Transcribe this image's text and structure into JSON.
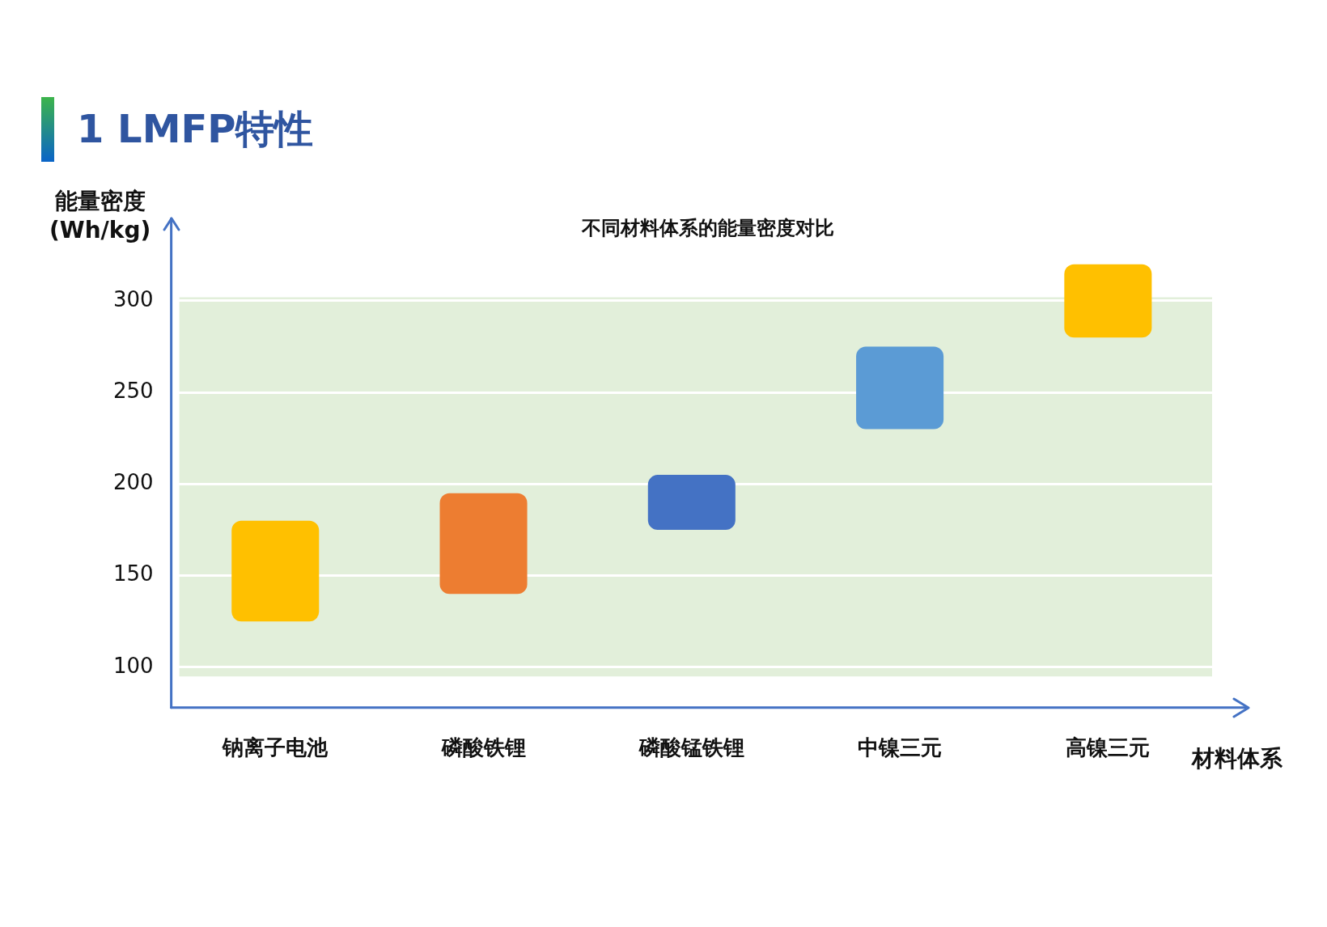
{
  "chart_data": {
    "type": "bar",
    "title": "1  LMFP特性",
    "subtitle": "不同材料体系的能量密度对比",
    "ylabel": "能量密度\n(Wh/kg)",
    "xlabel": "材料体系",
    "categories": [
      "钠离子电池",
      "磷酸铁锂",
      "磷酸锰铁锂",
      "中镍三元",
      "高镍三元"
    ],
    "base": [
      125,
      140,
      175,
      230,
      280
    ],
    "values": [
      55,
      55,
      30,
      45,
      40
    ],
    "colors": [
      "#ffc000",
      "#ed7d31",
      "#4472c4",
      "#5b9bd5",
      "#ffc000"
    ],
    "ylim": [
      78,
      345
    ],
    "yticks": [
      100,
      150,
      200,
      250,
      300
    ],
    "grid": "y",
    "legend": false,
    "bands": [
      {
        "axis": "y",
        "from": 95,
        "to": 302,
        "color": "#e2efda"
      }
    ]
  }
}
